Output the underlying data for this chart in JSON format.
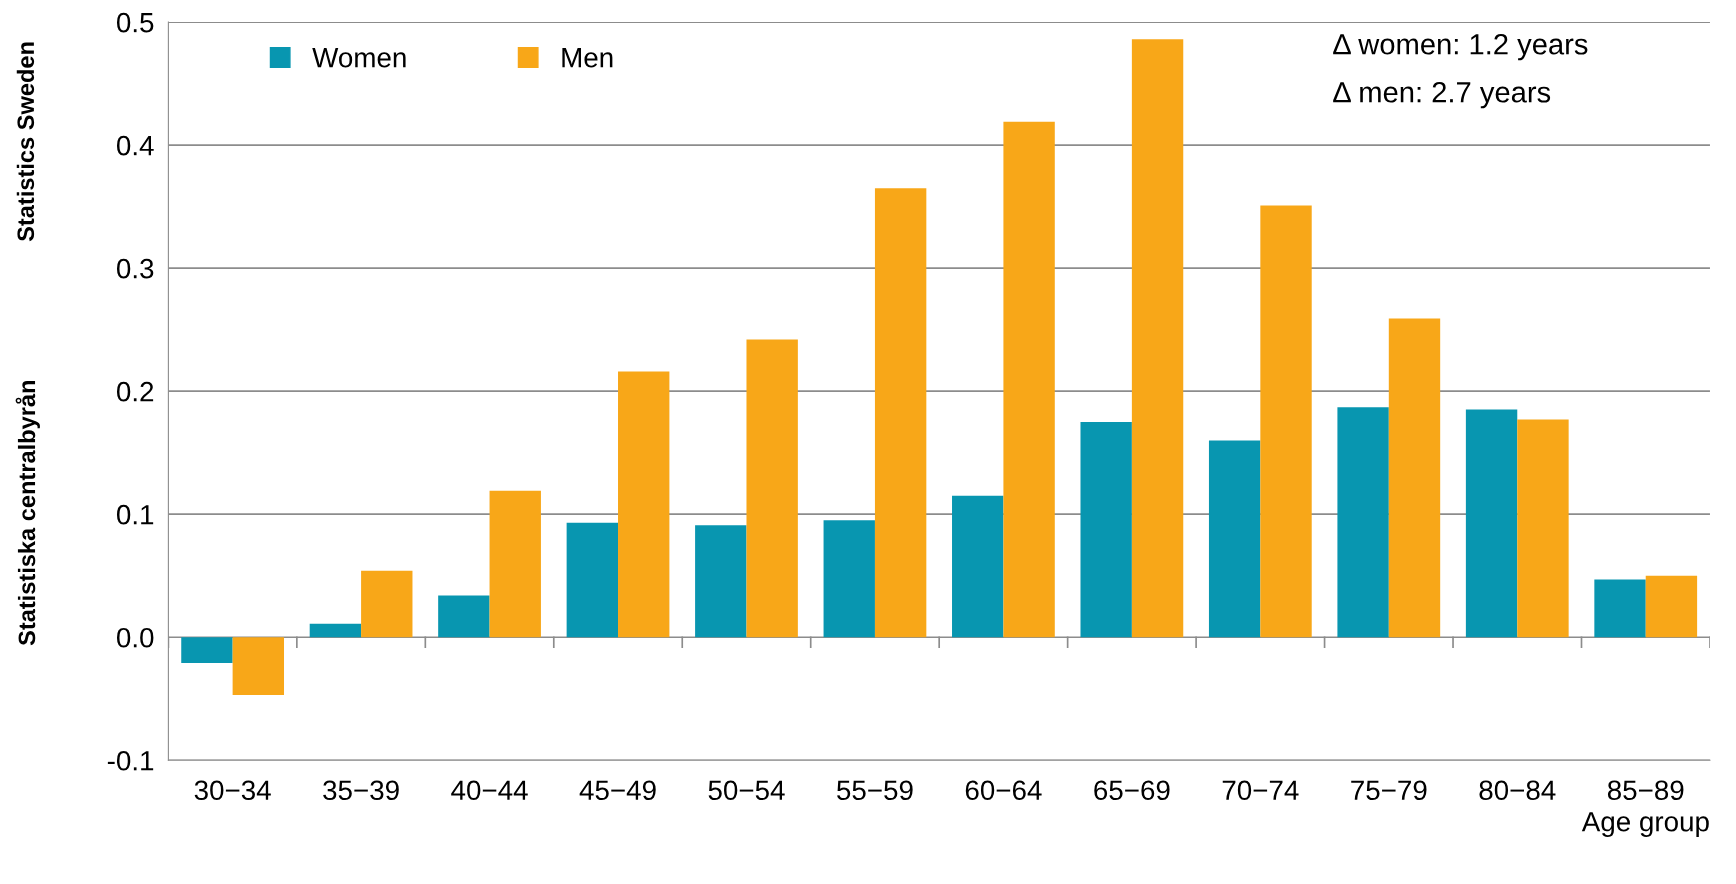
{
  "chart_data": {
    "type": "bar",
    "xlabel": "Age group",
    "categories": [
      "30−34",
      "35−39",
      "40−44",
      "45−49",
      "50−54",
      "55−59",
      "60−64",
      "65−69",
      "70−74",
      "75−79",
      "80−84",
      "85−89"
    ],
    "series": [
      {
        "name": "Women",
        "color": "#0896b0",
        "values": [
          -0.021,
          0.011,
          0.034,
          0.093,
          0.091,
          0.095,
          0.115,
          0.175,
          0.16,
          0.187,
          0.185,
          0.047
        ]
      },
      {
        "name": "Men",
        "color": "#f8a718",
        "values": [
          -0.047,
          0.054,
          0.119,
          0.216,
          0.242,
          0.365,
          0.419,
          0.486,
          0.351,
          0.259,
          0.177,
          0.05
        ]
      }
    ],
    "ylim": [
      -0.1,
      0.5
    ],
    "yticks": [
      {
        "value": -0.1,
        "label": "-0.1"
      },
      {
        "value": 0,
        "label": "0.0"
      },
      0.1,
      0.2,
      0.3,
      0.4,
      0.5
    ],
    "grid": "y",
    "legend": "top left",
    "annotations": [
      "Δ women: 1.2 years",
      "Δ men: 2.7 years",
      "Statistics Sweden",
      "Statistiska centralbyrån"
    ]
  }
}
